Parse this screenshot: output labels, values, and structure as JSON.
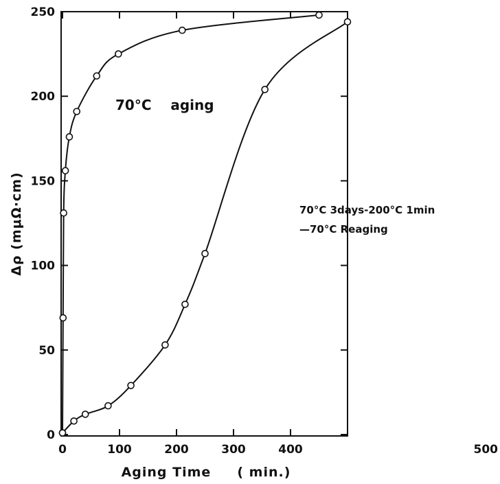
{
  "chart_data": {
    "type": "line",
    "xlabel": "Aging Time     ( min.)",
    "ylabel": "Δρ (mμΩ·cm)",
    "xlim": [
      0,
      500
    ],
    "ylim": [
      0,
      250
    ],
    "x_ticks": [
      0,
      100,
      200,
      300,
      400,
      500
    ],
    "y_ticks": [
      0,
      50,
      100,
      150,
      200,
      250
    ],
    "x_tick_labels": [
      "0",
      "100",
      "200",
      "300",
      "400",
      "500"
    ],
    "y_tick_labels": [
      "0",
      "50",
      "100",
      "150",
      "200",
      "250"
    ],
    "grid": false,
    "series": [
      {
        "label": "70°C  aging",
        "x": [
          0,
          1,
          2,
          5,
          12,
          25,
          60,
          98,
          210,
          450
        ],
        "y": [
          1,
          69,
          131,
          156,
          176,
          191,
          212,
          225,
          239,
          248
        ]
      },
      {
        "label": "70°C 3days-200°C 1min —70°C Reaging",
        "x": [
          0,
          20,
          40,
          80,
          120,
          180,
          215,
          250,
          355,
          500
        ],
        "y": [
          1,
          8,
          12,
          17,
          29,
          53,
          77,
          107,
          204,
          244
        ]
      }
    ],
    "annotations": [
      {
        "text": "70°C    aging"
      },
      {
        "text": "70°C 3days-200°C 1min"
      },
      {
        "text": "—70°C Reaging"
      }
    ]
  }
}
